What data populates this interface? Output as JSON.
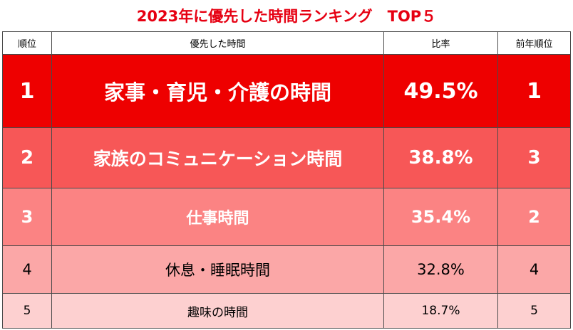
{
  "chart_data": {
    "type": "table",
    "title": "2023年に優先した時間ランキング　TOP５",
    "columns": [
      "順位",
      "優先した時間",
      "比率",
      "前年順位"
    ],
    "rows": [
      {
        "rank": "1",
        "item": "家事・育児・介護の時間",
        "rate": "49.5%",
        "prev": "1"
      },
      {
        "rank": "2",
        "item": "家族のコミュニケーション時間",
        "rate": "38.8%",
        "prev": "3"
      },
      {
        "rank": "3",
        "item": "仕事時間",
        "rate": "35.4%",
        "prev": "2"
      },
      {
        "rank": "4",
        "item": "休息・睡眠時間",
        "rate": "32.8%",
        "prev": "4"
      },
      {
        "rank": "5",
        "item": "趣味の時間",
        "rate": "18.7%",
        "prev": "5"
      }
    ],
    "values": [
      49.5,
      38.8,
      35.4,
      32.8,
      18.7
    ],
    "row_colors": [
      "#ee0000",
      "#f75757",
      "#fb8383",
      "#fba7a7",
      "#fdd0d0"
    ],
    "title_color": "#e60012"
  }
}
